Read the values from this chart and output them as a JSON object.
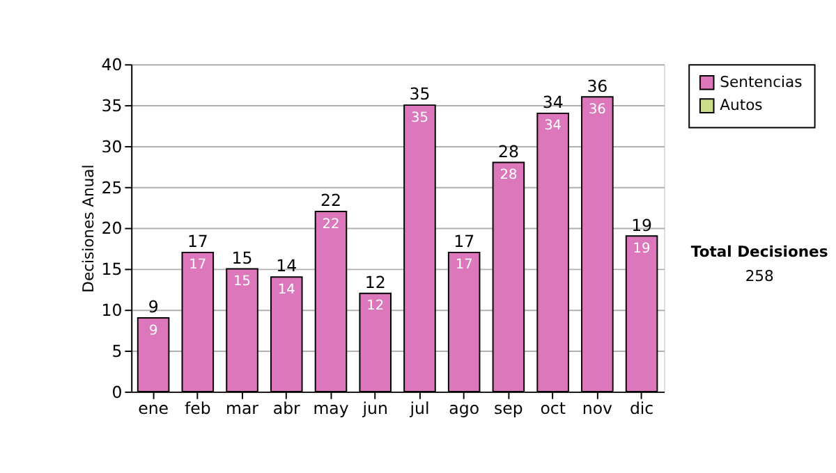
{
  "chart_data": {
    "type": "bar",
    "ylabel": "Decisiones Anual",
    "categories": [
      "ene",
      "feb",
      "mar",
      "abr",
      "may",
      "jun",
      "jul",
      "ago",
      "sep",
      "oct",
      "nov",
      "dic"
    ],
    "series": [
      {
        "name": "Sentencias",
        "color": "#dd77bb",
        "values": [
          9,
          17,
          15,
          14,
          22,
          12,
          35,
          17,
          28,
          34,
          36,
          19
        ],
        "value_labels": [
          "9",
          "17",
          "15",
          "14",
          "22",
          "12",
          "35",
          "17",
          "28",
          "34",
          "36",
          "19"
        ]
      },
      {
        "name": "Autos",
        "color": "#ccdd88",
        "values": [
          null,
          null,
          null,
          null,
          null,
          null,
          null,
          null,
          null,
          null,
          null,
          null
        ]
      }
    ],
    "stacked": true,
    "totals": [
      "9",
      "17",
      "15",
      "14",
      "22",
      "12",
      "35",
      "17",
      "28",
      "34",
      "36",
      "19"
    ],
    "ylim": [
      0,
      40
    ],
    "yticks": [
      0,
      5,
      10,
      15,
      20,
      25,
      30,
      35,
      40
    ],
    "grid": "y",
    "legend": "right",
    "annotations": [
      "Total Decisiones",
      "258"
    ]
  }
}
